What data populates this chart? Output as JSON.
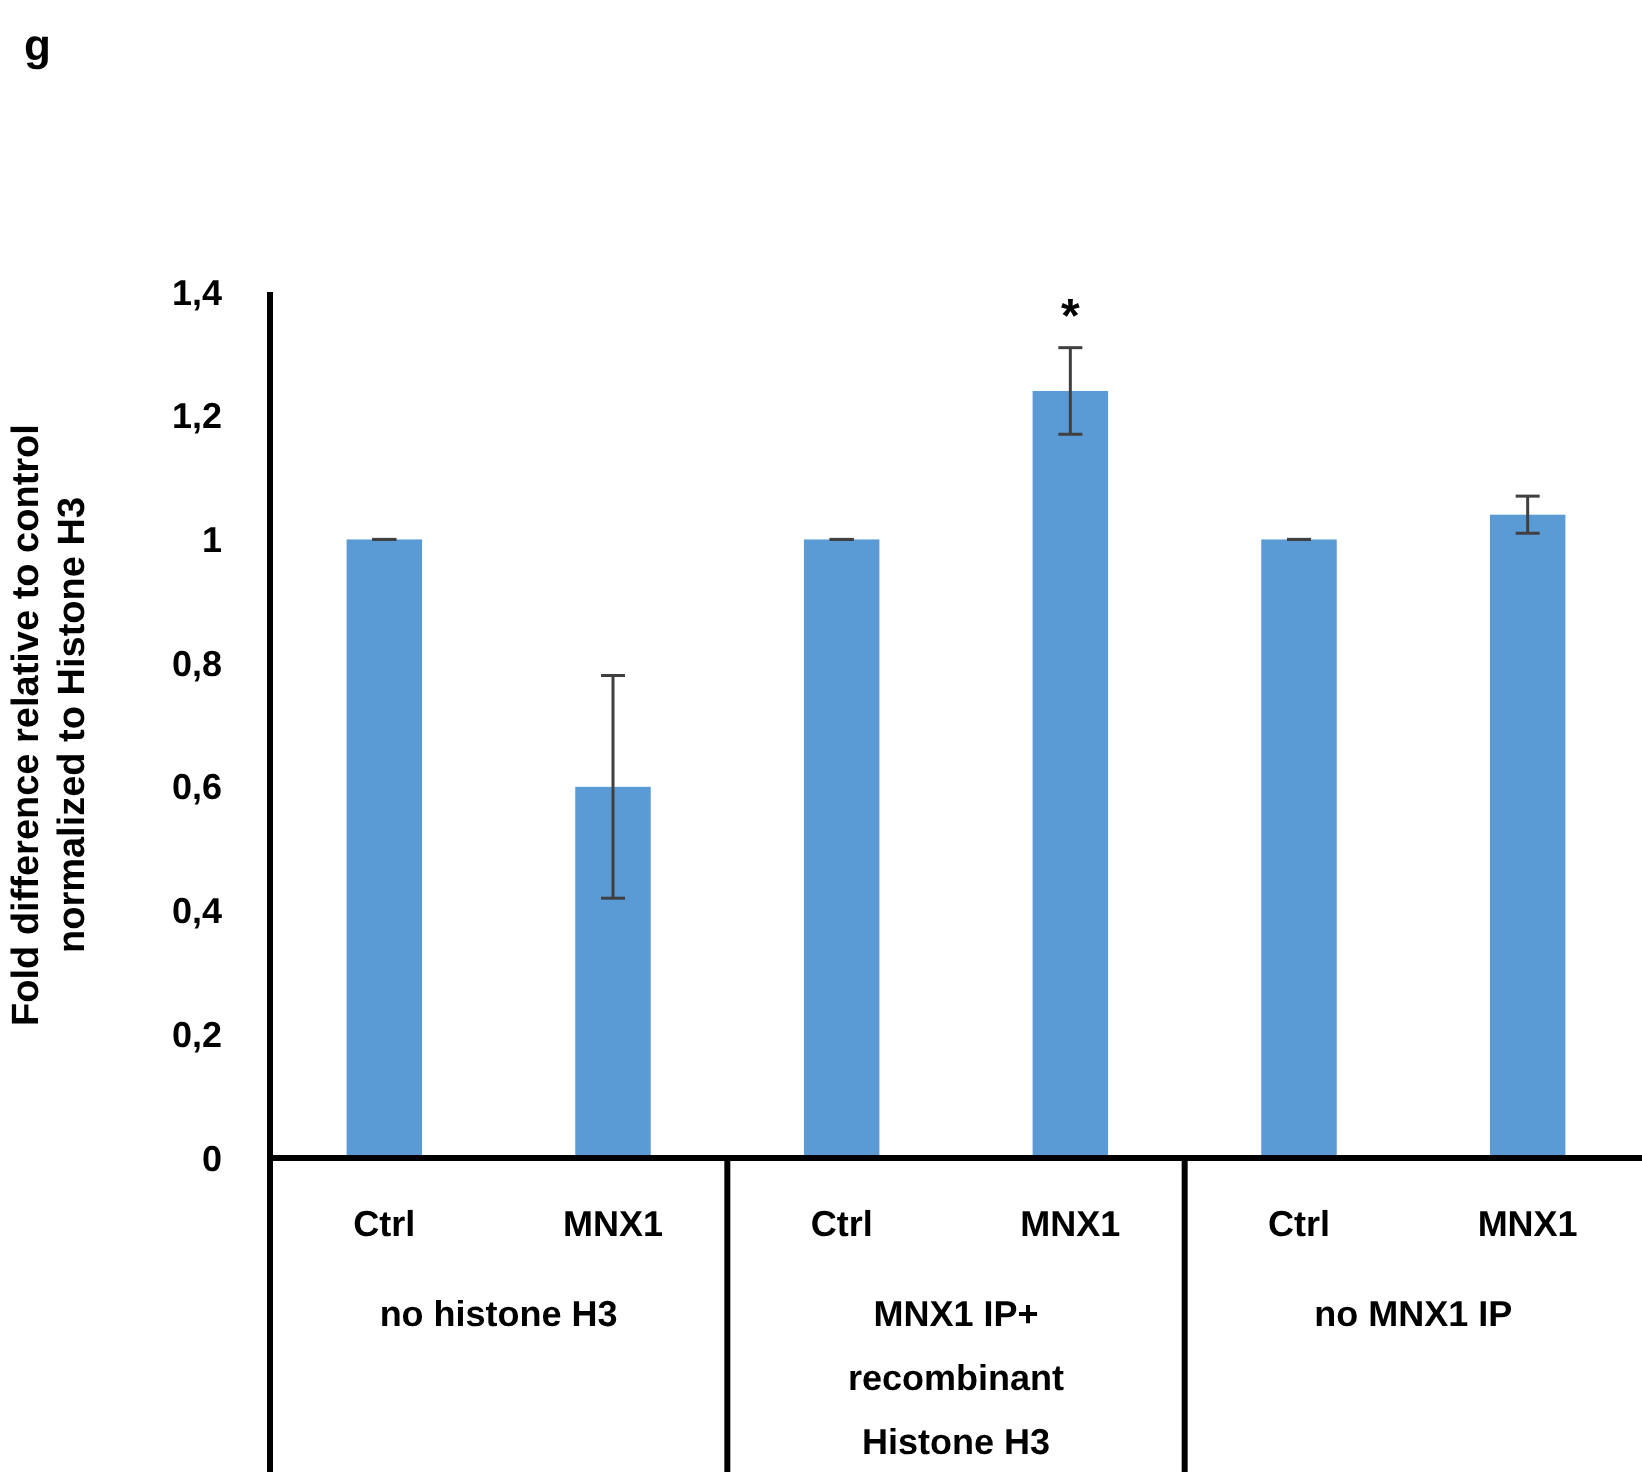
{
  "chart_data": {
    "type": "bar",
    "title": "g",
    "ylabel": "Fold difference relative to control normalized to Histone H3",
    "categories": [
      "Ctrl",
      "MNX1",
      "Ctrl",
      "MNX1",
      "Ctrl",
      "MNX1"
    ],
    "values": [
      1,
      0.6,
      1,
      1.24,
      1,
      1.04
    ],
    "errors": [
      0,
      0.18,
      0,
      0.07,
      0,
      0.03
    ],
    "color": "#5b9bd5",
    "ylim": [
      0,
      1.4
    ],
    "yticks": [
      {
        "value": 0,
        "label": "0"
      },
      {
        "value": 0.2,
        "label": "0,2"
      },
      {
        "value": 0.4,
        "label": "0,4"
      },
      {
        "value": 0.6,
        "label": "0,6"
      },
      {
        "value": 0.8,
        "label": "0,8"
      },
      {
        "value": 1,
        "label": "1"
      },
      {
        "value": 1.2,
        "label": "1,2"
      },
      {
        "value": 1.4,
        "label": "1,4"
      }
    ],
    "annotations": [
      "*",
      "no histone H3",
      "MNX1 IP+ recombinant Histone H3",
      "no MNX1 IP"
    ],
    "grid": false
  }
}
